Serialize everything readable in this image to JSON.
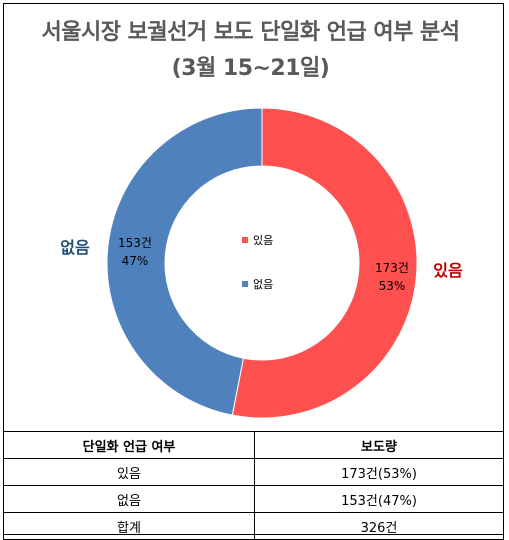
{
  "title_line1": "서울시장 보궐선거 보도 단일화 언급 여부 분석",
  "title_line2": "(3월 15~21일)",
  "colors": {
    "yes": "#ff5050",
    "no": "#4f81bd",
    "yes_label": "#c00000",
    "no_label": "#1f4e79",
    "title": "#595959"
  },
  "chart_data": {
    "type": "pie",
    "categories": [
      "있음",
      "없음"
    ],
    "values": [
      173,
      153
    ],
    "percent_labels": [
      "53%",
      "47%"
    ],
    "count_labels": [
      "173건",
      "153건"
    ],
    "outer_labels": [
      "있음",
      "없음"
    ],
    "legend": [
      "있음",
      "없음"
    ],
    "legend_position": "center"
  },
  "table": {
    "headers": [
      "단일화 언급 여부",
      "보도량"
    ],
    "rows": [
      [
        "있음",
        "173건(53%)"
      ],
      [
        "없음",
        "153건(47%)"
      ],
      [
        "합계",
        "326건"
      ]
    ]
  }
}
